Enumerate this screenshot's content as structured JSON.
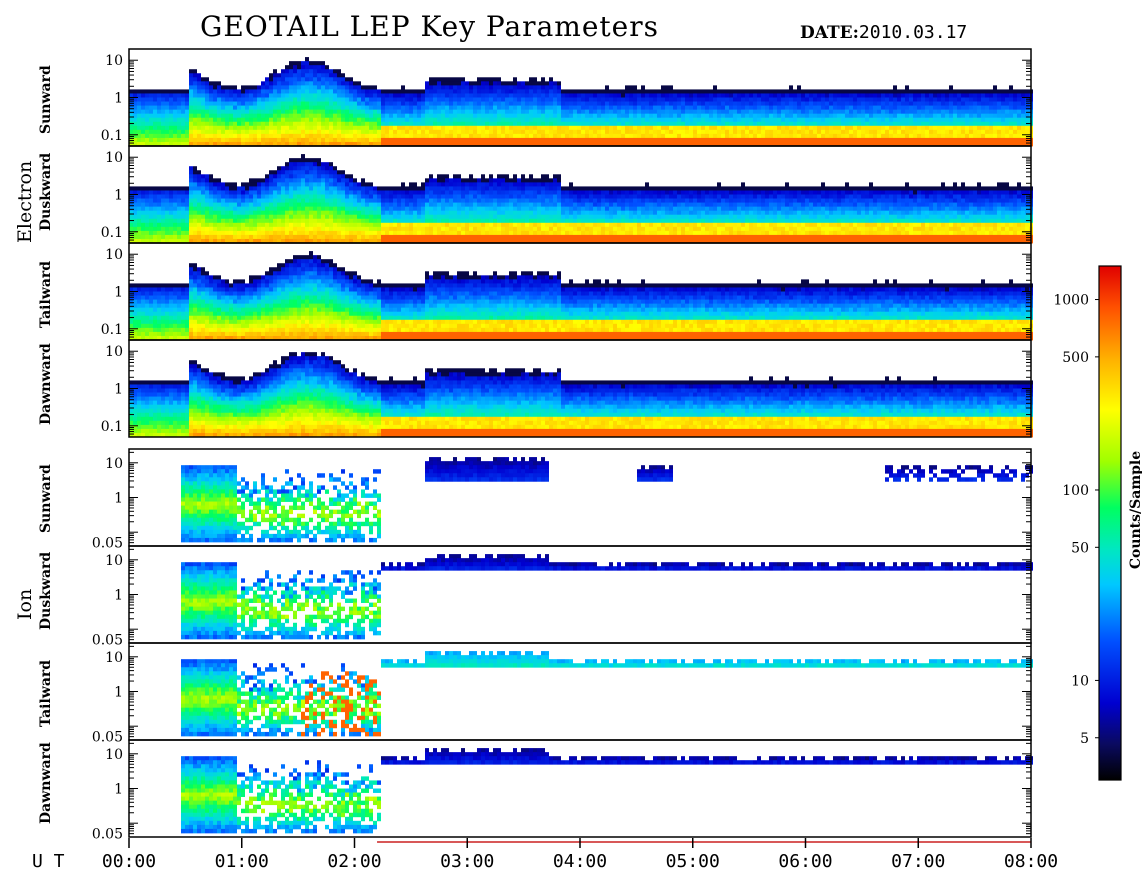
{
  "title": "GEOTAIL LEP Key Parameters",
  "date_label": "DATE:",
  "date_value": "2010.03.17",
  "chart_data": {
    "type": "heatmap",
    "x_axis": {
      "label": "U T",
      "ticks": [
        "00:00",
        "01:00",
        "02:00",
        "03:00",
        "04:00",
        "05:00",
        "06:00",
        "07:00",
        "08:00"
      ],
      "range_hours": [
        0,
        8
      ]
    },
    "groups": [
      {
        "name": "Electron",
        "y_ticks": [
          "10",
          "1",
          "0.1"
        ],
        "y_tick_values": [
          10,
          1,
          0.1
        ],
        "y_range_log": [
          0.05,
          20
        ],
        "panels": [
          {
            "name": "Sunward"
          },
          {
            "name": "Duskward"
          },
          {
            "name": "Tailward"
          },
          {
            "name": "Dawnward"
          }
        ]
      },
      {
        "name": "Ion",
        "y_ticks": [
          "10",
          "1",
          "0.05"
        ],
        "y_tick_values": [
          10,
          1,
          0.05
        ],
        "y_range_log": [
          0.04,
          25
        ],
        "panels": [
          {
            "name": "Sunward"
          },
          {
            "name": "Duskward"
          },
          {
            "name": "Tailward"
          },
          {
            "name": "Dawnward"
          }
        ]
      }
    ],
    "colorbar": {
      "label": "Counts/Sample",
      "scale": "log",
      "range": [
        3,
        1500
      ],
      "ticks": [
        "1000",
        "500",
        "100",
        "50",
        "10",
        "5"
      ],
      "tick_values": [
        1000,
        500,
        100,
        50,
        10,
        5
      ]
    }
  }
}
